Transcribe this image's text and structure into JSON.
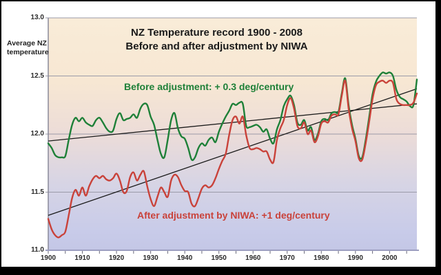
{
  "chart_data": {
    "type": "line",
    "title_line1": "NZ Temperature record 1900 - 2008",
    "title_line2": "Before and after adjustment by NIWA",
    "y_axis_title": [
      "Average NZ",
      "temperature"
    ],
    "xlim": [
      1900,
      2008
    ],
    "ylim": [
      11.0,
      13.0
    ],
    "grid": "horizontal-only",
    "y_ticks": [
      "13.0",
      "12.5",
      "12.0",
      "11.5",
      "11.0"
    ],
    "x_ticks": [
      "1900",
      "1910",
      "1920",
      "1930",
      "1940",
      "1950",
      "1960",
      "1970",
      "1980",
      "1990",
      "2000"
    ],
    "x_minor_tick_step": 5,
    "plot_background": {
      "top": "#f9ecd8",
      "middle": "#ecdcd8",
      "bottom": "#c4c7e6"
    },
    "series": [
      {
        "name": "before-adjustment",
        "label": "Before adjustment: + 0.3 deg/century",
        "color": "#1e8038",
        "x_start": 1900,
        "x_step": 1,
        "values": [
          11.92,
          11.88,
          11.82,
          11.8,
          11.8,
          11.81,
          11.95,
          12.08,
          12.14,
          12.11,
          12.14,
          12.1,
          12.08,
          12.07,
          12.12,
          12.14,
          12.1,
          12.05,
          12.02,
          12.03,
          12.13,
          12.18,
          12.12,
          12.13,
          12.14,
          12.17,
          12.14,
          12.22,
          12.26,
          12.25,
          12.15,
          12.08,
          11.95,
          11.83,
          11.8,
          11.95,
          12.12,
          12.18,
          12.05,
          11.98,
          11.96,
          11.88,
          11.78,
          11.8,
          11.88,
          11.92,
          11.9,
          11.95,
          11.97,
          11.93,
          12.02,
          12.09,
          12.15,
          12.2,
          12.26,
          12.25,
          12.27,
          12.26,
          12.07,
          12.06,
          12.07,
          12.08,
          12.06,
          12.02,
          12.04,
          11.96,
          11.92,
          12.04,
          12.12,
          12.24,
          12.3,
          12.33,
          12.25,
          12.1,
          12.08,
          12.12,
          12.03,
          12.06,
          11.95,
          12.0,
          12.11,
          12.13,
          12.12,
          12.18,
          12.19,
          12.19,
          12.35,
          12.48,
          12.25,
          12.08,
          11.96,
          11.81,
          11.8,
          11.95,
          12.14,
          12.34,
          12.45,
          12.5,
          12.53,
          12.52,
          12.53,
          12.5,
          12.38,
          12.32,
          12.3,
          12.28,
          12.24,
          12.25,
          12.47
        ]
      },
      {
        "name": "after-adjustment-niwa",
        "label": "After adjustment by NIWA: +1 deg/century",
        "color": "#c9423a",
        "x_start": 1900,
        "x_step": 1,
        "values": [
          11.27,
          11.18,
          11.13,
          11.11,
          11.13,
          11.16,
          11.3,
          11.45,
          11.52,
          11.47,
          11.54,
          11.47,
          11.55,
          11.61,
          11.64,
          11.62,
          11.64,
          11.61,
          11.6,
          11.62,
          11.66,
          11.6,
          11.5,
          11.51,
          11.63,
          11.67,
          11.6,
          11.65,
          11.68,
          11.55,
          11.44,
          11.38,
          11.46,
          11.54,
          11.5,
          11.46,
          11.6,
          11.65,
          11.63,
          11.56,
          11.51,
          11.5,
          11.4,
          11.38,
          11.45,
          11.53,
          11.56,
          11.54,
          11.56,
          11.62,
          11.7,
          11.77,
          11.83,
          11.99,
          12.12,
          12.15,
          12.09,
          12.15,
          11.99,
          11.88,
          11.87,
          11.88,
          11.87,
          11.85,
          11.85,
          11.78,
          11.76,
          11.95,
          12.05,
          12.12,
          12.25,
          12.31,
          12.22,
          12.07,
          12.05,
          12.1,
          12.0,
          12.03,
          11.93,
          11.98,
          12.09,
          12.11,
          12.1,
          12.16,
          12.17,
          12.17,
          12.33,
          12.46,
          12.22,
          12.05,
          11.94,
          11.79,
          11.78,
          11.92,
          12.1,
          12.3,
          12.42,
          12.45,
          12.46,
          12.44,
          12.46,
          12.44,
          12.3,
          12.26,
          12.25,
          12.25,
          12.25,
          12.27,
          12.35
        ]
      }
    ],
    "trend_lines": [
      {
        "name": "before-trend",
        "rate_label": "+ 0.3 deg/century",
        "start": [
          1900,
          11.94
        ],
        "end": [
          2008,
          12.26
        ],
        "color": "#1a1a1a"
      },
      {
        "name": "after-trend",
        "rate_label": "+1 deg/century",
        "start": [
          1900,
          11.3
        ],
        "end": [
          2008,
          12.39
        ],
        "color": "#1a1a1a"
      }
    ]
  }
}
